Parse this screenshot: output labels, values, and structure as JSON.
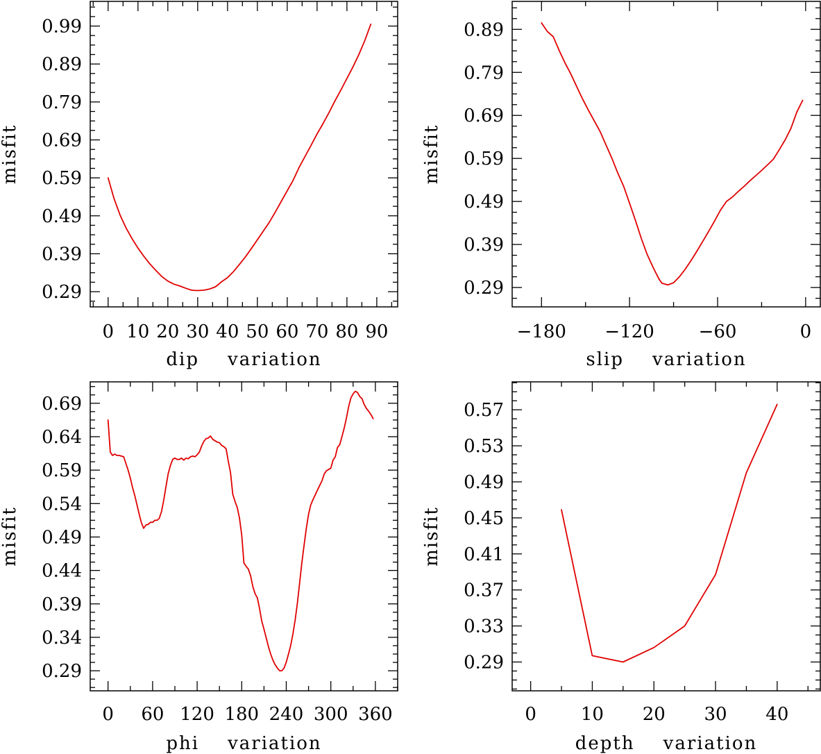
{
  "colors": {
    "line": "#e00000",
    "axis": "#000000",
    "background": "#ffffff"
  },
  "chart_data": [
    {
      "type": "line",
      "title": "",
      "xlabel": "dip    variation",
      "ylabel": "misfit",
      "xlim": [
        -6,
        97
      ],
      "ylim": [
        0.25,
        1.055
      ],
      "xticks": [
        0,
        10,
        20,
        30,
        40,
        50,
        60,
        70,
        80,
        90
      ],
      "yticks": [
        0.29,
        0.39,
        0.49,
        0.59,
        0.69,
        0.79,
        0.89,
        0.99
      ],
      "xtick_labels": [
        "0",
        "10",
        "20",
        "30",
        "40",
        "50",
        "60",
        "70",
        "80",
        "90"
      ],
      "ytick_labels": [
        "0.29",
        "0.39",
        "0.49",
        "0.59",
        "0.69",
        "0.79",
        "0.89",
        "0.99"
      ],
      "series": [
        {
          "name": "dip",
          "x": [
            0,
            2,
            4,
            6,
            8,
            10,
            12,
            14,
            16,
            18,
            20,
            22,
            24,
            26,
            28,
            30,
            32,
            34,
            36,
            38,
            40,
            42,
            44,
            46,
            48,
            50,
            52,
            54,
            56,
            58,
            60,
            62,
            64,
            66,
            68,
            70,
            72,
            74,
            76,
            78,
            80,
            82,
            84,
            86,
            88
          ],
          "y": [
            0.59,
            0.535,
            0.492,
            0.458,
            0.43,
            0.405,
            0.383,
            0.363,
            0.346,
            0.33,
            0.318,
            0.31,
            0.305,
            0.299,
            0.294,
            0.293,
            0.294,
            0.297,
            0.303,
            0.316,
            0.327,
            0.343,
            0.362,
            0.382,
            0.404,
            0.427,
            0.45,
            0.473,
            0.5,
            0.528,
            0.556,
            0.584,
            0.618,
            0.647,
            0.676,
            0.706,
            0.733,
            0.762,
            0.793,
            0.822,
            0.852,
            0.882,
            0.915,
            0.952,
            0.995
          ]
        }
      ]
    },
    {
      "type": "line",
      "title": "",
      "xlabel": "slip    variation",
      "ylabel": "misfit",
      "xlim": [
        -200,
        10
      ],
      "ylim": [
        0.245,
        0.955
      ],
      "xticks": [
        -180,
        -120,
        -60,
        0
      ],
      "yticks": [
        0.29,
        0.39,
        0.49,
        0.59,
        0.69,
        0.79,
        0.89
      ],
      "xtick_labels": [
        "−180",
        "−120",
        "−60",
        "0"
      ],
      "ytick_labels": [
        "0.29",
        "0.39",
        "0.49",
        "0.59",
        "0.69",
        "0.79",
        "0.89"
      ],
      "series": [
        {
          "name": "slip",
          "x": [
            -180,
            -176,
            -172,
            -168,
            -164,
            -160,
            -156,
            -152,
            -148,
            -144,
            -140,
            -136,
            -132,
            -128,
            -124,
            -120,
            -116,
            -112,
            -108,
            -104,
            -100,
            -98,
            -94,
            -90,
            -86,
            -82,
            -78,
            -74,
            -70,
            -66,
            -62,
            -58,
            -54,
            -50,
            -46,
            -42,
            -38,
            -34,
            -30,
            -26,
            -22,
            -18,
            -14,
            -10,
            -6,
            -2
          ],
          "y": [
            0.905,
            0.885,
            0.873,
            0.841,
            0.812,
            0.786,
            0.757,
            0.728,
            0.702,
            0.677,
            0.652,
            0.621,
            0.59,
            0.556,
            0.525,
            0.486,
            0.446,
            0.404,
            0.367,
            0.337,
            0.31,
            0.3,
            0.296,
            0.301,
            0.315,
            0.333,
            0.353,
            0.375,
            0.398,
            0.421,
            0.445,
            0.47,
            0.49,
            0.5,
            0.513,
            0.525,
            0.538,
            0.55,
            0.562,
            0.575,
            0.588,
            0.61,
            0.633,
            0.66,
            0.698,
            0.725
          ]
        }
      ]
    },
    {
      "type": "line",
      "title": "",
      "xlabel": "phi    variation",
      "ylabel": "misfit",
      "xlim": [
        -24,
        390
      ],
      "ylim": [
        0.26,
        0.722
      ],
      "xticks": [
        0,
        60,
        120,
        180,
        240,
        300,
        360
      ],
      "yticks": [
        0.29,
        0.34,
        0.39,
        0.44,
        0.49,
        0.54,
        0.59,
        0.64,
        0.69
      ],
      "xtick_labels": [
        "0",
        "60",
        "120",
        "180",
        "240",
        "300",
        "360"
      ],
      "ytick_labels": [
        "0.29",
        "0.34",
        "0.39",
        "0.44",
        "0.49",
        "0.54",
        "0.59",
        "0.64",
        "0.69"
      ],
      "series": [
        {
          "name": "phi",
          "x": [
            0,
            3,
            6,
            9,
            12,
            15,
            18,
            21,
            24,
            27,
            30,
            33,
            36,
            39,
            42,
            45,
            48,
            51,
            54,
            57,
            60,
            63,
            66,
            69,
            72,
            75,
            78,
            81,
            84,
            87,
            90,
            93,
            96,
            99,
            102,
            105,
            108,
            111,
            114,
            117,
            120,
            123,
            126,
            129,
            132,
            135,
            138,
            141,
            144,
            147,
            150,
            153,
            156,
            159,
            162,
            165,
            168,
            171,
            174,
            177,
            180,
            183,
            186,
            189,
            192,
            195,
            198,
            201,
            204,
            207,
            210,
            213,
            216,
            219,
            222,
            225,
            228,
            231,
            234,
            237,
            240,
            243,
            246,
            249,
            252,
            255,
            258,
            261,
            264,
            267,
            270,
            273,
            276,
            279,
            282,
            285,
            288,
            291,
            294,
            297,
            300,
            303,
            306,
            309,
            312,
            315,
            318,
            321,
            324,
            327,
            330,
            333,
            336,
            339,
            342,
            345,
            348,
            351,
            354,
            357
          ],
          "y": [
            0.665,
            0.617,
            0.612,
            0.614,
            0.612,
            0.612,
            0.611,
            0.61,
            0.6,
            0.59,
            0.578,
            0.564,
            0.552,
            0.538,
            0.524,
            0.511,
            0.503,
            0.508,
            0.509,
            0.512,
            0.512,
            0.515,
            0.515,
            0.518,
            0.528,
            0.545,
            0.565,
            0.585,
            0.597,
            0.606,
            0.608,
            0.606,
            0.606,
            0.608,
            0.605,
            0.608,
            0.607,
            0.61,
            0.611,
            0.61,
            0.613,
            0.617,
            0.626,
            0.633,
            0.637,
            0.638,
            0.641,
            0.636,
            0.634,
            0.632,
            0.631,
            0.627,
            0.625,
            0.622,
            0.603,
            0.586,
            0.554,
            0.543,
            0.534,
            0.518,
            0.493,
            0.451,
            0.446,
            0.442,
            0.432,
            0.416,
            0.405,
            0.399,
            0.383,
            0.364,
            0.352,
            0.339,
            0.326,
            0.315,
            0.306,
            0.299,
            0.294,
            0.29,
            0.29,
            0.294,
            0.303,
            0.315,
            0.328,
            0.345,
            0.366,
            0.391,
            0.422,
            0.452,
            0.478,
            0.503,
            0.524,
            0.538,
            0.546,
            0.553,
            0.56,
            0.567,
            0.574,
            0.584,
            0.589,
            0.591,
            0.593,
            0.605,
            0.61,
            0.624,
            0.628,
            0.64,
            0.653,
            0.668,
            0.685,
            0.698,
            0.704,
            0.708,
            0.706,
            0.7,
            0.697,
            0.688,
            0.682,
            0.678,
            0.673,
            0.667
          ]
        }
      ]
    },
    {
      "type": "line",
      "title": "",
      "xlabel": "depth    variation",
      "ylabel": "misfit",
      "xlim": [
        -3,
        47
      ],
      "ylim": [
        0.258,
        0.601
      ],
      "xticks": [
        0,
        10,
        20,
        30,
        40
      ],
      "yticks": [
        0.29,
        0.33,
        0.37,
        0.41,
        0.45,
        0.49,
        0.53,
        0.57
      ],
      "xtick_labels": [
        "0",
        "10",
        "20",
        "30",
        "40"
      ],
      "ytick_labels": [
        "0.29",
        "0.33",
        "0.37",
        "0.41",
        "0.45",
        "0.49",
        "0.53",
        "0.57"
      ],
      "series": [
        {
          "name": "depth",
          "x": [
            5,
            10,
            15,
            20,
            25,
            30,
            35,
            40
          ],
          "y": [
            0.459,
            0.297,
            0.29,
            0.306,
            0.33,
            0.387,
            0.5,
            0.576
          ]
        }
      ]
    }
  ]
}
